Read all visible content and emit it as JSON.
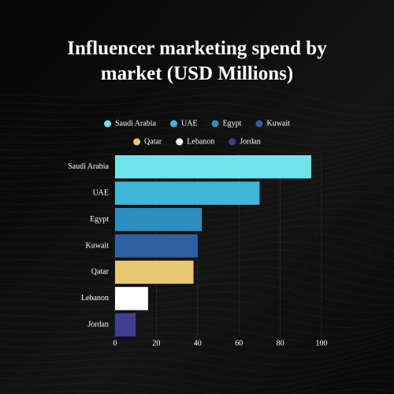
{
  "chart_data": {
    "type": "bar",
    "orientation": "horizontal",
    "title": "Influencer marketing spend by market (USD Millions)",
    "categories": [
      "Saudi Arabia",
      "UAE",
      "Egypt",
      "Kuwait",
      "Qatar",
      "Lebanon",
      "Jordan"
    ],
    "values": [
      95,
      70,
      42,
      40,
      38,
      16,
      10
    ],
    "colors": [
      "#6fe5ea",
      "#3fb7d9",
      "#2f8ec0",
      "#2f609f",
      "#e7c871",
      "#ffffff",
      "#40408f"
    ],
    "xlim": [
      0,
      100
    ],
    "xticks": [
      0,
      20,
      40,
      60,
      80,
      100
    ],
    "grid": true
  }
}
